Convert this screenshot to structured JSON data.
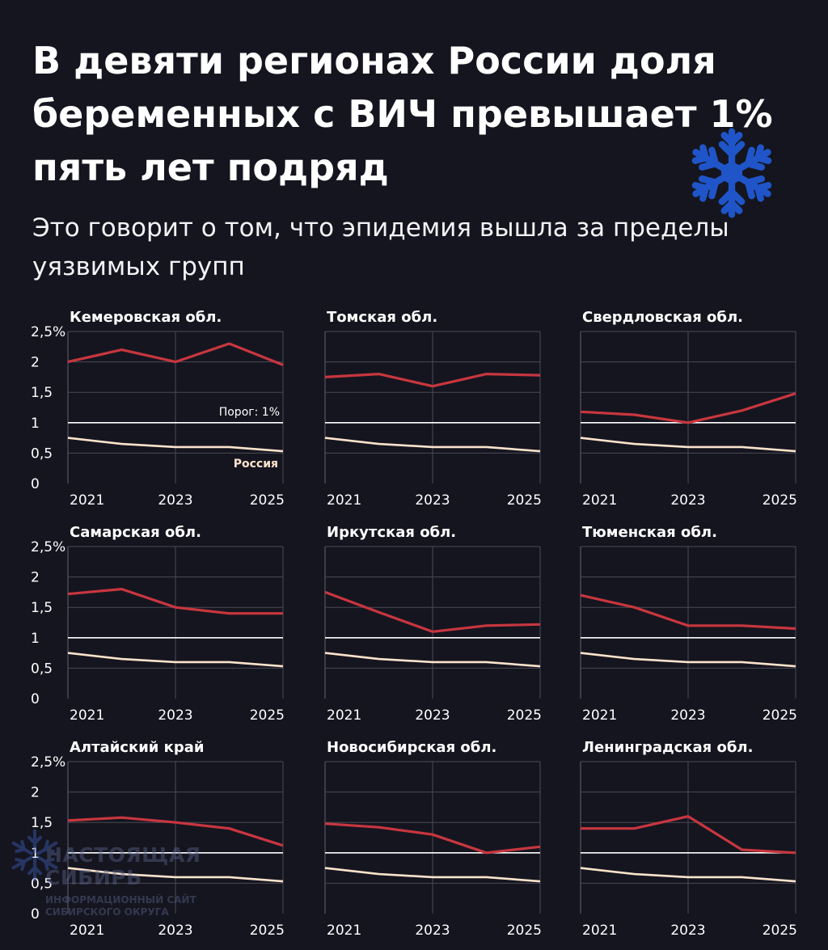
{
  "header": {
    "title": "В девяти регионах России доля беременных с ВИЧ превышает 1% пять лет подряд",
    "subtitle": "Это говорит о том, что эпидемия вышла за пределы уязвимых групп"
  },
  "watermark": {
    "name": "НАСТОЯЩАЯ СИБИРЬ",
    "tagline": "ИНФОРМАЦИОННЫЙ САЙТ СИБИРСКОГО ОКРУГА"
  },
  "colors": {
    "background": "#15151f",
    "region_line": "#c8363f",
    "russia_line": "#fbe3cc",
    "threshold_line": "#ffffff",
    "grid": "#4a4a56",
    "accent_snowflake": "#1f55c8"
  },
  "icons": [
    "snowflake-icon"
  ],
  "chart_data": [
    {
      "type": "line",
      "title": "Кемеровская обл.",
      "x": [
        2021,
        2022,
        2023,
        2024,
        2025
      ],
      "x_tick_labels": [
        "2021",
        "2023",
        "2025"
      ],
      "y_tick_labels": [
        "2,5%",
        "2",
        "1,5",
        "1",
        "0,5",
        "0"
      ],
      "ylim": [
        0,
        2.5
      ],
      "threshold": {
        "value": 1,
        "label": "Порог: 1%"
      },
      "series": [
        {
          "values": [
            2.0,
            2.2,
            2.0,
            2.3,
            1.95
          ]
        },
        {
          "name": "Россия",
          "values": [
            0.75,
            0.65,
            0.6,
            0.6,
            0.53
          ]
        }
      ]
    },
    {
      "type": "line",
      "title": "Томская обл.",
      "x": [
        2021,
        2022,
        2023,
        2024,
        2025
      ],
      "x_tick_labels": [
        "2021",
        "2023",
        "2025"
      ],
      "ylim": [
        0,
        2.5
      ],
      "threshold": {
        "value": 1
      },
      "series": [
        {
          "values": [
            1.75,
            1.8,
            1.6,
            1.8,
            1.78
          ]
        },
        {
          "values": [
            0.75,
            0.65,
            0.6,
            0.6,
            0.53
          ]
        }
      ]
    },
    {
      "type": "line",
      "title": "Свердловская обл.",
      "x": [
        2021,
        2022,
        2023,
        2024,
        2025
      ],
      "x_tick_labels": [
        "2021",
        "2023",
        "2025"
      ],
      "ylim": [
        0,
        2.5
      ],
      "threshold": {
        "value": 1
      },
      "series": [
        {
          "values": [
            1.18,
            1.13,
            1.0,
            1.2,
            1.48
          ]
        },
        {
          "values": [
            0.75,
            0.65,
            0.6,
            0.6,
            0.53
          ]
        }
      ]
    },
    {
      "type": "line",
      "title": "Самарская обл.",
      "x": [
        2021,
        2022,
        2023,
        2024,
        2025
      ],
      "x_tick_labels": [
        "2021",
        "2023",
        "2025"
      ],
      "y_tick_labels": [
        "2,5%",
        "2",
        "1,5",
        "1",
        "0,5",
        "0"
      ],
      "ylim": [
        0,
        2.5
      ],
      "threshold": {
        "value": 1
      },
      "series": [
        {
          "values": [
            1.72,
            1.8,
            1.5,
            1.4,
            1.4
          ]
        },
        {
          "values": [
            0.75,
            0.65,
            0.6,
            0.6,
            0.53
          ]
        }
      ]
    },
    {
      "type": "line",
      "title": "Иркутская обл.",
      "x": [
        2021,
        2022,
        2023,
        2024,
        2025
      ],
      "x_tick_labels": [
        "2021",
        "2023",
        "2025"
      ],
      "ylim": [
        0,
        2.5
      ],
      "threshold": {
        "value": 1
      },
      "series": [
        {
          "values": [
            1.75,
            1.42,
            1.1,
            1.2,
            1.22
          ]
        },
        {
          "values": [
            0.75,
            0.65,
            0.6,
            0.6,
            0.53
          ]
        }
      ]
    },
    {
      "type": "line",
      "title": "Тюменская обл.",
      "x": [
        2021,
        2022,
        2023,
        2024,
        2025
      ],
      "x_tick_labels": [
        "2021",
        "2023",
        "2025"
      ],
      "ylim": [
        0,
        2.5
      ],
      "threshold": {
        "value": 1
      },
      "series": [
        {
          "values": [
            1.7,
            1.5,
            1.2,
            1.2,
            1.15
          ]
        },
        {
          "values": [
            0.75,
            0.65,
            0.6,
            0.6,
            0.53
          ]
        }
      ]
    },
    {
      "type": "line",
      "title": "Алтайский край",
      "x": [
        2021,
        2022,
        2023,
        2024,
        2025
      ],
      "x_tick_labels": [
        "2021",
        "2023",
        "2025"
      ],
      "y_tick_labels": [
        "2,5%",
        "2",
        "1,5",
        "1",
        "0,5",
        "0"
      ],
      "ylim": [
        0,
        2.5
      ],
      "threshold": {
        "value": 1
      },
      "series": [
        {
          "values": [
            1.53,
            1.58,
            1.5,
            1.4,
            1.12
          ]
        },
        {
          "values": [
            0.75,
            0.65,
            0.6,
            0.6,
            0.53
          ]
        }
      ]
    },
    {
      "type": "line",
      "title": "Новосибирская обл.",
      "x": [
        2021,
        2022,
        2023,
        2024,
        2025
      ],
      "x_tick_labels": [
        "2021",
        "2023",
        "2025"
      ],
      "ylim": [
        0,
        2.5
      ],
      "threshold": {
        "value": 1
      },
      "series": [
        {
          "values": [
            1.48,
            1.42,
            1.3,
            1.0,
            1.1
          ]
        },
        {
          "values": [
            0.75,
            0.65,
            0.6,
            0.6,
            0.53
          ]
        }
      ]
    },
    {
      "type": "line",
      "title": "Ленинградская обл.",
      "x": [
        2021,
        2022,
        2023,
        2024,
        2025
      ],
      "x_tick_labels": [
        "2021",
        "2023",
        "2025"
      ],
      "ylim": [
        0,
        2.5
      ],
      "threshold": {
        "value": 1
      },
      "series": [
        {
          "values": [
            1.4,
            1.4,
            1.6,
            1.05,
            1.0
          ]
        },
        {
          "values": [
            0.75,
            0.65,
            0.6,
            0.6,
            0.53
          ]
        }
      ]
    }
  ]
}
